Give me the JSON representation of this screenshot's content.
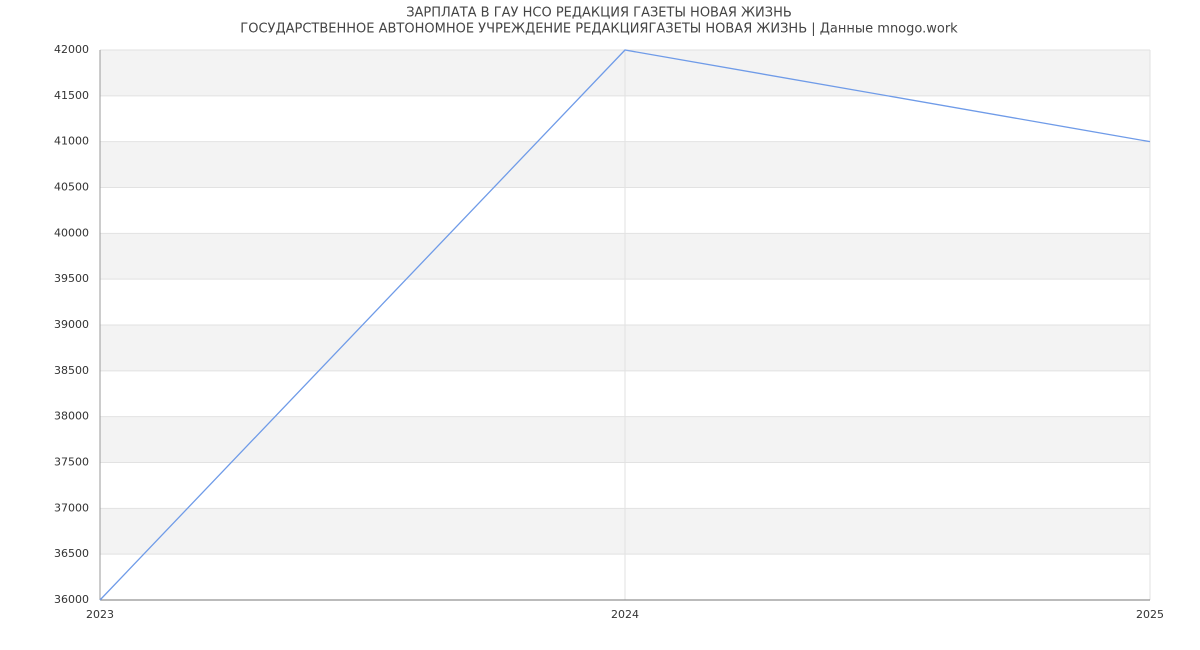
{
  "chart_data": {
    "type": "line",
    "title": "ЗАРПЛАТА В ГАУ НСО РЕДАКЦИЯ ГАЗЕТЫ НОВАЯ ЖИЗНЬ",
    "subtitle": "ГОСУДАРСТВЕННОЕ АВТОНОМНОЕ УЧРЕЖДЕНИЕ РЕДАКЦИЯГАЗЕТЫ НОВАЯ ЖИЗНЬ | Данные mnogo.work",
    "x": [
      2023,
      2024,
      2025
    ],
    "series": [
      {
        "color": "#6f9be8",
        "values": [
          36000,
          42000,
          41000
        ]
      }
    ],
    "xlim": [
      2023,
      2025
    ],
    "xticks": [
      2023,
      2024,
      2025
    ],
    "ylim": [
      36000,
      42000
    ],
    "yticks": [
      36000,
      36500,
      37000,
      37500,
      38000,
      38500,
      39000,
      39500,
      40000,
      40500,
      41000,
      41500,
      42000
    ],
    "grid": true
  }
}
